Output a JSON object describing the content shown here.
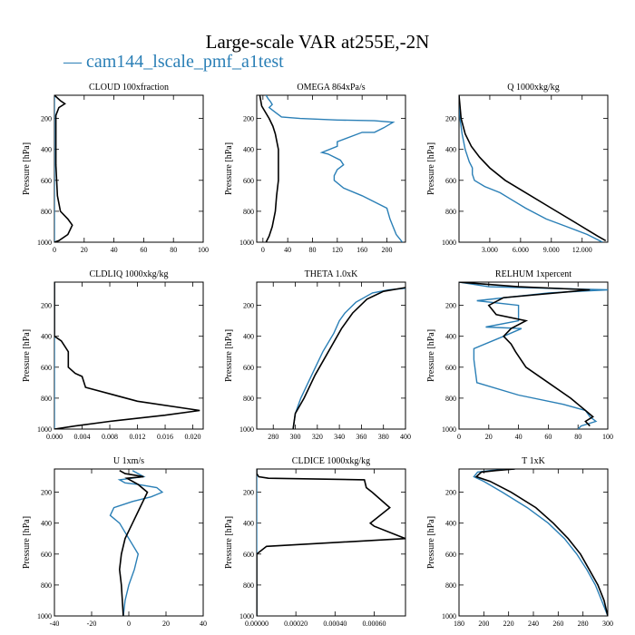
{
  "figure": {
    "title": "Large-scale VAR at255E,-2N",
    "legend": "cam144_lscale_pmf_a1test",
    "legend_marker": "—"
  },
  "colors": {
    "series_blue": "#2a7fb6",
    "series_black": "#000000"
  },
  "chart_data": [
    {
      "type": "line",
      "title": "CLOUD  100xfraction",
      "ylabel": "Pressure [hPa]",
      "ylim": [
        1000,
        50
      ],
      "yticks": [
        200,
        400,
        600,
        800,
        1000
      ],
      "xlim": [
        0,
        100
      ],
      "xticks": [
        "0",
        "20",
        "40",
        "60",
        "80",
        "100"
      ],
      "xtick_values": [
        0,
        20,
        40,
        60,
        80,
        100
      ],
      "series": [
        {
          "color": "#2a7fb6",
          "x": [
            0,
            0,
            0,
            0,
            0,
            0,
            0,
            0
          ],
          "y": [
            50,
            200,
            400,
            600,
            800,
            900,
            950,
            1000
          ]
        },
        {
          "color": "#000000",
          "x": [
            0,
            4,
            7,
            3,
            1,
            1,
            1,
            2,
            4,
            9,
            12,
            9,
            3,
            0
          ],
          "y": [
            50,
            85,
            105,
            130,
            180,
            300,
            500,
            700,
            800,
            850,
            890,
            950,
            990,
            1000
          ]
        }
      ]
    },
    {
      "type": "line",
      "title": "OMEGA  864xPa/s",
      "ylabel": "Pressure [hPa]",
      "ylim": [
        1000,
        50
      ],
      "yticks": [
        200,
        400,
        600,
        800,
        1000
      ],
      "xlim": [
        -10,
        230
      ],
      "xticks": [
        "0",
        "40",
        "80",
        "120",
        "160",
        "200"
      ],
      "xtick_values": [
        0,
        40,
        80,
        120,
        160,
        200
      ],
      "series": [
        {
          "color": "#2a7fb6",
          "x": [
            5,
            8,
            12,
            15,
            10,
            20,
            30,
            60,
            120,
            180,
            210,
            195,
            180,
            160,
            120,
            120,
            95,
            105,
            125,
            130,
            120,
            115,
            115,
            130,
            160,
            200,
            205,
            210,
            215,
            225
          ],
          "y": [
            50,
            70,
            90,
            110,
            130,
            160,
            190,
            200,
            210,
            215,
            225,
            260,
            290,
            290,
            350,
            380,
            420,
            430,
            470,
            500,
            530,
            570,
            600,
            650,
            700,
            780,
            850,
            900,
            950,
            1000
          ]
        },
        {
          "color": "#000000",
          "x": [
            -5,
            -2,
            10,
            16,
            20,
            25,
            25,
            25,
            22,
            20,
            15,
            10,
            5
          ],
          "y": [
            50,
            120,
            200,
            250,
            300,
            400,
            500,
            600,
            700,
            800,
            900,
            960,
            1000
          ]
        }
      ]
    },
    {
      "type": "line",
      "title": "Q  1000xkg/kg",
      "ylabel": "Pressure [hPa]",
      "ylim": [
        1000,
        50
      ],
      "yticks": [
        200,
        400,
        600,
        800,
        1000
      ],
      "xlim": [
        0,
        14.5
      ],
      "xticks": [
        "3.000",
        "6.000",
        "9.000",
        "12.000"
      ],
      "xtick_values": [
        3,
        6,
        9,
        12
      ],
      "series": [
        {
          "color": "#2a7fb6",
          "x": [
            0,
            0.1,
            0.3,
            0.6,
            1.0,
            1.3,
            1.3,
            1.5,
            2.5,
            4.0,
            5.0,
            6.5,
            8.5,
            10.5,
            12.5,
            14.0
          ],
          "y": [
            50,
            200,
            300,
            400,
            480,
            520,
            560,
            600,
            640,
            680,
            720,
            780,
            850,
            900,
            950,
            1000
          ]
        },
        {
          "color": "#000000",
          "x": [
            0,
            0.2,
            0.6,
            1.2,
            2.0,
            3.0,
            4.5,
            6.5,
            9.0,
            11.5,
            13.5,
            14.3
          ],
          "y": [
            50,
            200,
            300,
            380,
            450,
            520,
            600,
            680,
            780,
            880,
            960,
            990
          ]
        }
      ]
    },
    {
      "type": "line",
      "title": "CLDLIQ  1000xkg/kg",
      "ylabel": "Pressure [hPa]",
      "ylim": [
        1000,
        50
      ],
      "yticks": [
        200,
        400,
        600,
        800,
        1000
      ],
      "xlim": [
        0,
        0.0215
      ],
      "xticks": [
        "0.000",
        "0.004",
        "0.008",
        "0.012",
        "0.016",
        "0.020"
      ],
      "xtick_values": [
        0,
        0.004,
        0.008,
        0.012,
        0.016,
        0.02
      ],
      "series": [
        {
          "color": "#2a7fb6",
          "x": [
            0,
            0,
            0,
            0,
            0,
            0
          ],
          "y": [
            50,
            200,
            400,
            600,
            800,
            1000
          ]
        },
        {
          "color": "#000000",
          "x": [
            0,
            0,
            0.001,
            0.002,
            0.002,
            0.003,
            0.004,
            0.0045,
            0.012,
            0.021,
            0.016,
            0.008,
            0.003,
            0
          ],
          "y": [
            50,
            400,
            430,
            500,
            600,
            640,
            660,
            730,
            820,
            880,
            910,
            950,
            980,
            1000
          ]
        }
      ]
    },
    {
      "type": "line",
      "title": "THETA  1.0xK",
      "ylabel": "Pressure [hPa]",
      "ylim": [
        1000,
        50
      ],
      "yticks": [
        200,
        400,
        600,
        800,
        1000
      ],
      "xlim": [
        265,
        400
      ],
      "xticks": [
        "280",
        "300",
        "320",
        "340",
        "360",
        "380",
        "400"
      ],
      "xtick_values": [
        280,
        300,
        320,
        340,
        360,
        380,
        400
      ],
      "series": [
        {
          "color": "#2a7fb6",
          "x": [
            298,
            300,
            305,
            315,
            325,
            335,
            340,
            345,
            355,
            370,
            385,
            400
          ],
          "y": [
            1000,
            900,
            800,
            650,
            500,
            380,
            300,
            250,
            180,
            120,
            100,
            90
          ]
        },
        {
          "color": "#000000",
          "x": [
            298,
            300,
            308,
            318,
            330,
            342,
            352,
            365,
            380,
            400
          ],
          "y": [
            1000,
            900,
            800,
            650,
            500,
            350,
            250,
            160,
            110,
            85
          ]
        }
      ]
    },
    {
      "type": "line",
      "title": "RELHUM  1xpercent",
      "ylabel": "Pressure [hPa]",
      "ylim": [
        1000,
        50
      ],
      "yticks": [
        200,
        400,
        600,
        800,
        1000
      ],
      "xlim": [
        0,
        100
      ],
      "xticks": [
        "0",
        "20",
        "40",
        "60",
        "80",
        "100"
      ],
      "xtick_values": [
        0,
        20,
        40,
        60,
        80,
        100
      ],
      "series": [
        {
          "color": "#2a7fb6",
          "x": [
            0,
            20,
            100,
            60,
            12,
            40,
            40,
            18,
            42,
            30,
            10,
            10,
            12,
            40,
            70,
            85,
            88,
            92,
            82,
            80
          ],
          "y": [
            50,
            80,
            100,
            120,
            170,
            200,
            300,
            340,
            350,
            400,
            480,
            550,
            700,
            780,
            840,
            880,
            920,
            950,
            980,
            1000
          ]
        },
        {
          "color": "#000000",
          "x": [
            0,
            40,
            88,
            30,
            20,
            25,
            45,
            35,
            30,
            35,
            38,
            45,
            60,
            75,
            85,
            90,
            85,
            88
          ],
          "y": [
            50,
            80,
            100,
            150,
            200,
            260,
            300,
            350,
            400,
            450,
            500,
            600,
            700,
            800,
            880,
            920,
            950,
            980
          ]
        }
      ]
    },
    {
      "type": "line",
      "title": "U  1xm/s",
      "ylabel": "Pressure [hPa]",
      "ylim": [
        1000,
        50
      ],
      "yticks": [
        200,
        400,
        600,
        800,
        1000
      ],
      "xlim": [
        -40,
        40
      ],
      "xticks": [
        "-40",
        "-20",
        "0",
        "20",
        "40"
      ],
      "xtick_values": [
        -40,
        -20,
        0,
        20,
        40
      ],
      "series": [
        {
          "color": "#2a7fb6",
          "x": [
            2,
            8,
            -5,
            -2,
            5,
            15,
            18,
            12,
            2,
            -8,
            -10,
            -5,
            0,
            5,
            3,
            0,
            -2,
            -3
          ],
          "y": [
            60,
            100,
            120,
            140,
            150,
            170,
            200,
            230,
            260,
            300,
            350,
            400,
            500,
            600,
            700,
            800,
            900,
            1000
          ]
        },
        {
          "color": "#000000",
          "x": [
            -5,
            -2,
            8,
            -1,
            5,
            10,
            6,
            2,
            -2,
            -4,
            -5,
            -4,
            -3
          ],
          "y": [
            60,
            80,
            100,
            110,
            150,
            200,
            300,
            400,
            500,
            600,
            700,
            800,
            1000
          ]
        }
      ]
    },
    {
      "type": "line",
      "title": "CLDICE  1000xkg/kg",
      "ylabel": "Pressure [hPa]",
      "ylim": [
        1000,
        50
      ],
      "yticks": [
        200,
        400,
        600,
        800,
        1000
      ],
      "xlim": [
        0,
        0.00076
      ],
      "xticks": [
        "0.00000",
        "0.00020",
        "0.00040",
        "0.00060"
      ],
      "xtick_values": [
        0,
        0.0002,
        0.0004,
        0.0006
      ],
      "series": [
        {
          "color": "#2a7fb6",
          "x": [
            0,
            0,
            0,
            0,
            0
          ],
          "y": [
            50,
            300,
            600,
            800,
            1000
          ]
        },
        {
          "color": "#000000",
          "x": [
            0,
            0,
            1e-05,
            6e-05,
            0.00055,
            0.00056,
            0.00059,
            0.00068,
            0.00058,
            0.0006,
            0.00076,
            5e-05,
            0,
            0
          ],
          "y": [
            50,
            80,
            100,
            110,
            120,
            170,
            200,
            300,
            400,
            420,
            500,
            550,
            600,
            1000
          ]
        }
      ]
    },
    {
      "type": "line",
      "title": "T  1xK",
      "ylabel": "Pressure [hPa]",
      "ylim": [
        1000,
        50
      ],
      "yticks": [
        200,
        400,
        600,
        800,
        1000
      ],
      "xlim": [
        180,
        300
      ],
      "xticks": [
        "180",
        "200",
        "220",
        "240",
        "260",
        "280",
        "300"
      ],
      "xtick_values": [
        180,
        200,
        220,
        240,
        260,
        280,
        300
      ],
      "series": [
        {
          "color": "#2a7fb6",
          "x": [
            225,
            205,
            195,
            192,
            200,
            215,
            235,
            252,
            265,
            275,
            283,
            290,
            295,
            300
          ],
          "y": [
            50,
            60,
            70,
            100,
            130,
            200,
            300,
            400,
            500,
            600,
            700,
            800,
            900,
            1000
          ]
        },
        {
          "color": "#000000",
          "x": [
            225,
            210,
            198,
            194,
            205,
            222,
            242,
            256,
            268,
            278,
            285,
            292,
            297,
            300
          ],
          "y": [
            50,
            60,
            70,
            100,
            130,
            200,
            300,
            400,
            500,
            600,
            700,
            800,
            900,
            1000
          ]
        }
      ]
    }
  ]
}
